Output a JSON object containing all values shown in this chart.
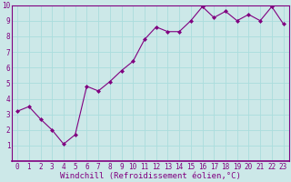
{
  "x": [
    0,
    1,
    2,
    3,
    4,
    5,
    6,
    7,
    8,
    9,
    10,
    11,
    12,
    13,
    14,
    15,
    16,
    17,
    18,
    19,
    20,
    21,
    22,
    23
  ],
  "y": [
    3.2,
    3.5,
    2.7,
    2.0,
    1.1,
    1.7,
    4.8,
    4.5,
    5.1,
    5.8,
    6.4,
    7.8,
    8.6,
    8.3,
    8.3,
    9.0,
    9.9,
    9.2,
    9.6,
    9.0,
    9.4,
    9.0,
    9.9,
    8.8
  ],
  "xlim": [
    -0.5,
    23.5
  ],
  "ylim": [
    0,
    10
  ],
  "xticks": [
    0,
    1,
    2,
    3,
    4,
    5,
    6,
    7,
    8,
    9,
    10,
    11,
    12,
    13,
    14,
    15,
    16,
    17,
    18,
    19,
    20,
    21,
    22,
    23
  ],
  "yticks": [
    1,
    2,
    3,
    4,
    5,
    6,
    7,
    8,
    9,
    10
  ],
  "xlabel": "Windchill (Refroidissement éolien,°C)",
  "line_color": "#800080",
  "marker": "D",
  "marker_size": 2,
  "background_color": "#cce8e8",
  "grid_color": "#aadddd",
  "tick_label_color": "#800080",
  "xlabel_color": "#800080",
  "tick_fontsize": 5.5,
  "xlabel_fontsize": 6.5,
  "spine_color": "#800080"
}
